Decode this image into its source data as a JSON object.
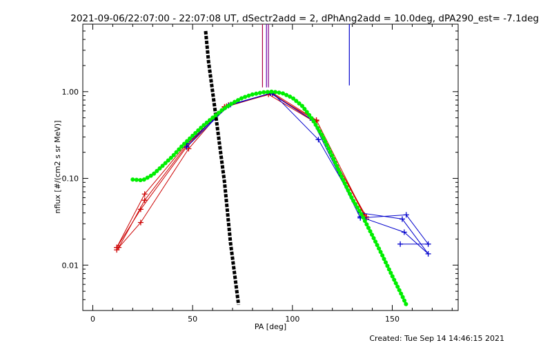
{
  "title": "2021-09-06/22:07:00 - 22:07:08 UT, dSectr2add = 2, dPhAng2add = 10.0deg, dPA290_est= -7.1deg",
  "footer": "Created: Tue Sep 14 14:46:15 2021",
  "chart_data": {
    "type": "scatter",
    "xlabel": "PA [deg]",
    "ylabel": "nflux [#/(cm2 s sr MeV)]",
    "xlim": [
      -5,
      183
    ],
    "ylim": [
      0.003,
      6
    ],
    "yscale": "log",
    "grid": false,
    "x_ticks": [
      0,
      50,
      100,
      150
    ],
    "x_tick_labels": [
      "0",
      "50",
      "100",
      "150"
    ],
    "y_ticks": [
      0.01,
      0.1,
      1.0
    ],
    "y_tick_labels": [
      "0.01",
      "0.10",
      "1.00"
    ],
    "series": [
      {
        "color": "#cc0000",
        "marker": "+",
        "lines": [
          [
            [
              12,
              0.016
            ],
            [
              24,
              0.044
            ],
            [
              47,
              0.23
            ],
            [
              66,
              0.67
            ],
            [
              90,
              0.95
            ],
            [
              110,
              0.47
            ],
            [
              137,
              0.036
            ]
          ],
          [
            [
              12,
              0.016
            ],
            [
              26,
              0.066
            ],
            [
              47,
              0.25
            ],
            [
              68,
              0.7
            ],
            [
              90,
              0.97
            ],
            [
              112,
              0.47
            ],
            [
              136,
              0.038
            ]
          ],
          [
            [
              12,
              0.015
            ],
            [
              24,
              0.031
            ],
            [
              48,
              0.22
            ],
            [
              66,
              0.66
            ],
            [
              88,
              0.93
            ],
            [
              111,
              0.45
            ],
            [
              137,
              0.034
            ]
          ],
          [
            [
              13,
              0.016
            ],
            [
              26,
              0.056
            ],
            [
              47,
              0.24
            ],
            [
              67,
              0.68
            ],
            [
              89,
              0.96
            ],
            [
              112,
              0.46
            ]
          ]
        ]
      },
      {
        "color": "#0000cc",
        "marker": "+",
        "lines": [
          [
            [
              47,
              0.25
            ],
            [
              69,
              0.71
            ],
            [
              90,
              0.97
            ],
            [
              113,
              0.28
            ],
            [
              134,
              0.04
            ],
            [
              155,
              0.034
            ],
            [
              168,
              0.0135
            ],
            [
              156,
              0.024
            ],
            [
              134,
              0.036
            ]
          ],
          [
            [
              47,
              0.23
            ],
            [
              68,
              0.69
            ],
            [
              89,
              0.96
            ],
            [
              110,
              0.47
            ],
            [
              134,
              0.035
            ],
            [
              157,
              0.038
            ],
            [
              168,
              0.0175
            ],
            [
              154,
              0.0175
            ]
          ]
        ]
      },
      {
        "color": "#000000",
        "style": "thick-dashed",
        "points": [
          [
            56.5,
            5.0
          ],
          [
            58,
            2.2
          ],
          [
            60,
            1.0
          ],
          [
            62,
            0.45
          ],
          [
            64,
            0.2
          ],
          [
            66,
            0.09
          ],
          [
            67.5,
            0.04
          ],
          [
            69,
            0.018
          ],
          [
            71,
            0.008
          ],
          [
            73,
            0.0035
          ]
        ]
      },
      {
        "color": "#00ee00",
        "style": "thick-dotted",
        "points": [
          [
            20,
            0.097
          ],
          [
            25,
            0.095
          ],
          [
            30,
            0.11
          ],
          [
            35,
            0.14
          ],
          [
            40,
            0.18
          ],
          [
            45,
            0.24
          ],
          [
            50,
            0.31
          ],
          [
            55,
            0.4
          ],
          [
            60,
            0.5
          ],
          [
            65,
            0.62
          ],
          [
            70,
            0.74
          ],
          [
            75,
            0.85
          ],
          [
            80,
            0.93
          ],
          [
            85,
            0.98
          ],
          [
            90,
            1.0
          ],
          [
            95,
            0.96
          ],
          [
            100,
            0.85
          ],
          [
            105,
            0.68
          ],
          [
            110,
            0.48
          ],
          [
            115,
            0.31
          ],
          [
            120,
            0.18
          ],
          [
            125,
            0.1
          ],
          [
            130,
            0.058
          ],
          [
            135,
            0.037
          ],
          [
            140,
            0.022
          ],
          [
            145,
            0.013
          ],
          [
            150,
            0.0075
          ],
          [
            155,
            0.0044
          ],
          [
            157,
            0.0035
          ]
        ]
      }
    ],
    "vertical_markers": [
      {
        "color": "#aa0044",
        "x": 85,
        "y_from": 1.12,
        "y_to": 6
      },
      {
        "color": "#6600aa",
        "x": 87,
        "y_from": 1.12,
        "y_to": 6
      },
      {
        "color": "#880088",
        "x": 88,
        "y_from": 1.12,
        "y_to": 6
      },
      {
        "color": "#0000cc",
        "x": 128.5,
        "y_from": 1.18,
        "y_to": 6
      }
    ]
  }
}
